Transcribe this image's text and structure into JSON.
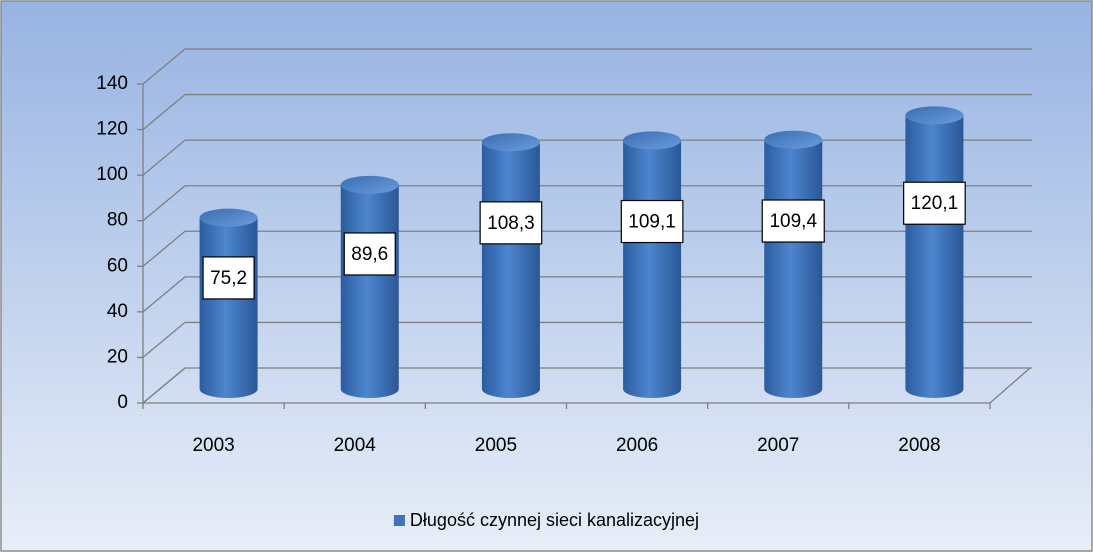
{
  "chart_data": {
    "type": "bar",
    "categories": [
      "2003",
      "2004",
      "2005",
      "2006",
      "2007",
      "2008"
    ],
    "series": [
      {
        "name": "Długość czynnej sieci kanalizacyjnej",
        "color": "#3f73bd",
        "values": [
          75.2,
          89.6,
          108.3,
          109.1,
          109.4,
          120.1
        ],
        "value_labels": [
          "75,2",
          "89,6",
          "108,3",
          "109,1",
          "109,4",
          "120,1"
        ]
      }
    ],
    "ylim": [
      0,
      140
    ],
    "yticks": [
      0,
      20,
      40,
      60,
      80,
      100,
      120,
      140
    ],
    "grid": true,
    "legend": "bottom"
  }
}
